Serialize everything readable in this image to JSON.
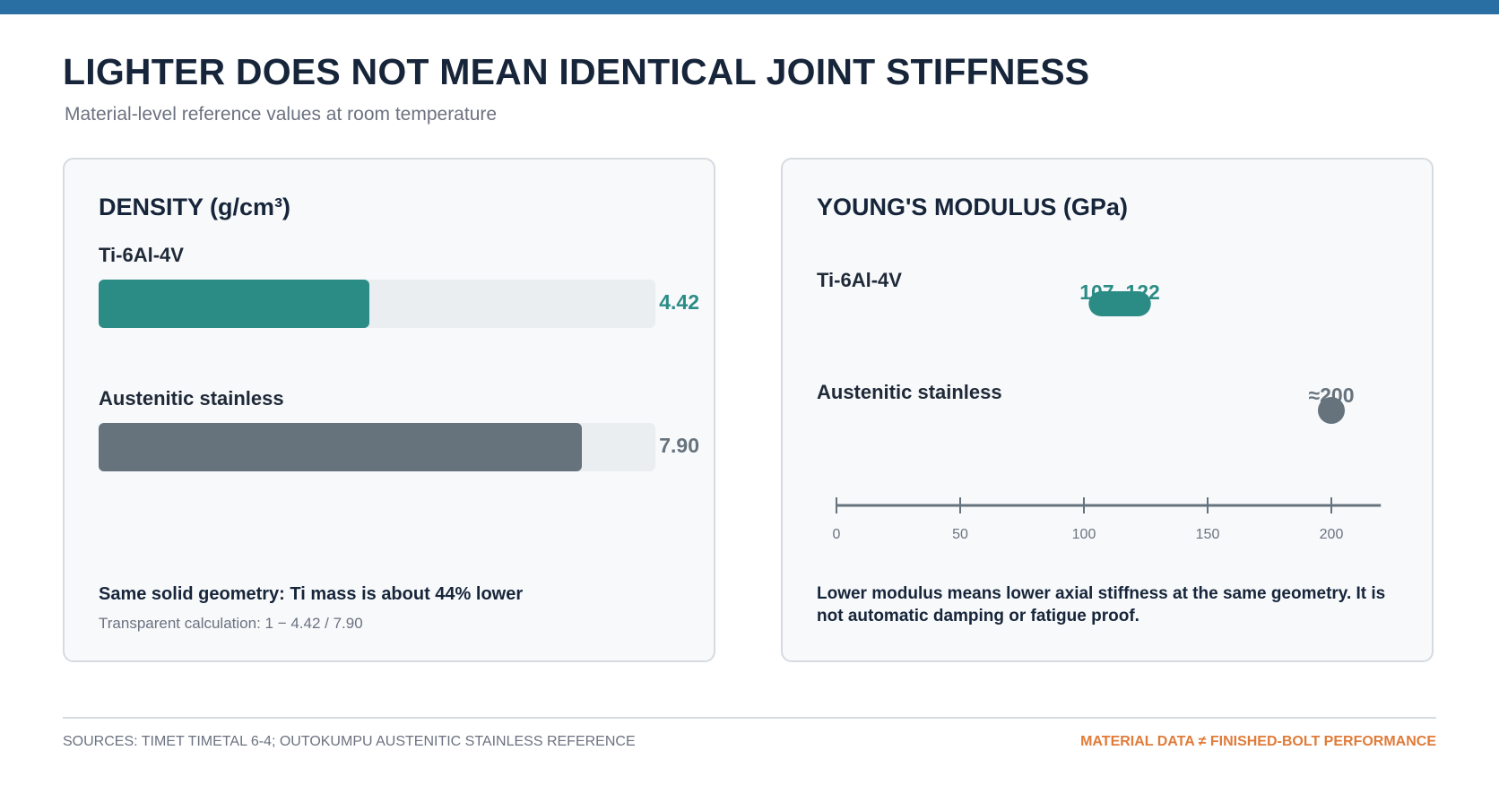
{
  "header": {
    "title": "LIGHTER DOES NOT MEAN IDENTICAL JOINT STIFFNESS",
    "subtitle": "Material-level reference values at room temperature"
  },
  "colors": {
    "top_bar": "#2a6fa3",
    "titanium": "#2b8c86",
    "stainless": "#66737d",
    "accent": "#e07b39",
    "track": "#eaeef1"
  },
  "chart_data": [
    {
      "type": "bar",
      "orientation": "horizontal",
      "title": "DENSITY (g/cm³)",
      "categories": [
        "Ti-6Al-4V",
        "Austenitic stainless"
      ],
      "values": [
        4.42,
        7.9
      ],
      "value_labels": [
        "4.42",
        "7.90"
      ],
      "xlim": [
        0,
        9.1
      ],
      "grid": false,
      "note_bold": "Same solid geometry: Ti mass is about 44% lower",
      "note_small": "Transparent calculation: 1 − 4.42 / 7.90"
    },
    {
      "type": "scatter",
      "title": "YOUNG'S MODULUS (GPa)",
      "categories": [
        "Ti-6Al-4V",
        "Austenitic stainless"
      ],
      "ranges": [
        [
          107,
          122
        ],
        [
          200,
          200
        ]
      ],
      "value_labels": [
        "107–122",
        "≈200"
      ],
      "x_ticks": [
        0,
        50,
        100,
        150,
        200
      ],
      "x_tick_labels": [
        "0",
        "50",
        "100",
        "150",
        "200"
      ],
      "xlim": [
        0,
        220
      ],
      "grid": false,
      "note": "Lower modulus means lower axial stiffness at the same geometry. It is not automatic damping or fatigue proof."
    }
  ],
  "footer": {
    "sources": "SOURCES: TIMET TIMETAL 6-4; OUTOKUMPU AUSTENITIC STAINLESS REFERENCE",
    "tagline": "MATERIAL DATA ≠ FINISHED-BOLT PERFORMANCE"
  }
}
